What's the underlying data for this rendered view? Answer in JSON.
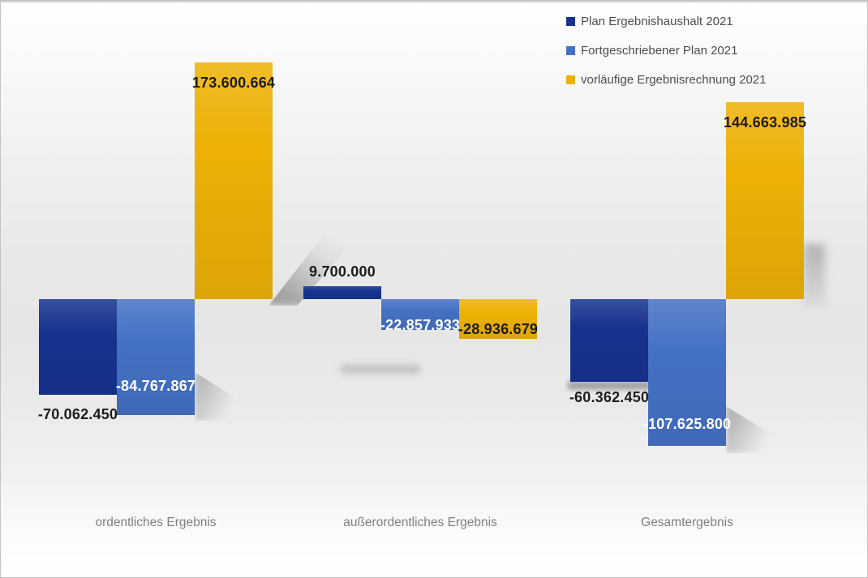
{
  "chart_data": {
    "type": "bar",
    "title": "",
    "xlabel": "",
    "ylabel": "",
    "categories": [
      "ordentliches Ergebnis",
      "außerordentliches Ergebnis",
      "Gesamtergebnis"
    ],
    "series": [
      {
        "name": "Plan Ergebnishaushalt 2021",
        "color": "#16338E",
        "label_color": "#1c1c1c",
        "values": [
          -70062450,
          9700000,
          -60362450
        ],
        "labels": [
          "-70.062.450",
          "9.700.000",
          "-60.362.450"
        ]
      },
      {
        "name": "Fortgeschriebener Plan 2021",
        "color": "#4571C4",
        "label_color": "#ffffff",
        "values": [
          -84767867,
          -22857933,
          -107625800
        ],
        "labels": [
          "-84.767.867",
          "-22.857.933",
          "-107.625.800"
        ]
      },
      {
        "name": "vorläufige Ergebnisrechnung 2021",
        "color": "#EDB106",
        "label_color": "#1c1c1c",
        "values": [
          173600664,
          -28936679,
          144663985
        ],
        "labels": [
          "173.600.664",
          "-28.936.679",
          "144.663.985"
        ]
      }
    ],
    "ylim": [
      -130000000,
      200000000
    ],
    "grid": false,
    "axis_lines": false,
    "legend_position": "top-right",
    "category_label_color": "#7f7f7f"
  }
}
